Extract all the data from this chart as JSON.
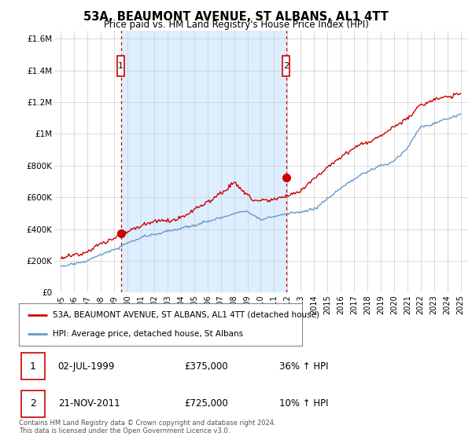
{
  "title": "53A, BEAUMONT AVENUE, ST ALBANS, AL1 4TT",
  "subtitle": "Price paid vs. HM Land Registry's House Price Index (HPI)",
  "hpi_color": "#6699cc",
  "price_color": "#cc0000",
  "background_color": "#ffffff",
  "grid_color": "#cccccc",
  "shade_color": "#ddeeff",
  "ylim": [
    0,
    1650000
  ],
  "yticks": [
    0,
    200000,
    400000,
    600000,
    800000,
    1000000,
    1200000,
    1400000,
    1600000
  ],
  "ytick_labels": [
    "£0",
    "£200K",
    "£400K",
    "£600K",
    "£800K",
    "£1M",
    "£1.2M",
    "£1.4M",
    "£1.6M"
  ],
  "sale1": {
    "date_x": 1999.5,
    "price": 375000,
    "label": "1"
  },
  "sale2": {
    "date_x": 2011.9,
    "price": 725000,
    "label": "2"
  },
  "legend_entries": [
    "53A, BEAUMONT AVENUE, ST ALBANS, AL1 4TT (detached house)",
    "HPI: Average price, detached house, St Albans"
  ],
  "table_rows": [
    {
      "num": "1",
      "date": "02-JUL-1999",
      "price": "£375,000",
      "change": "36% ↑ HPI"
    },
    {
      "num": "2",
      "date": "21-NOV-2011",
      "price": "£725,000",
      "change": "10% ↑ HPI"
    }
  ],
  "footer": "Contains HM Land Registry data © Crown copyright and database right 2024.\nThis data is licensed under the Open Government Licence v3.0.",
  "xlim": [
    1994.5,
    2025.5
  ],
  "xticks": [
    1995,
    1996,
    1997,
    1998,
    1999,
    2000,
    2001,
    2002,
    2003,
    2004,
    2005,
    2006,
    2007,
    2008,
    2009,
    2010,
    2011,
    2012,
    2013,
    2014,
    2015,
    2016,
    2017,
    2018,
    2019,
    2020,
    2021,
    2022,
    2023,
    2024,
    2025
  ]
}
